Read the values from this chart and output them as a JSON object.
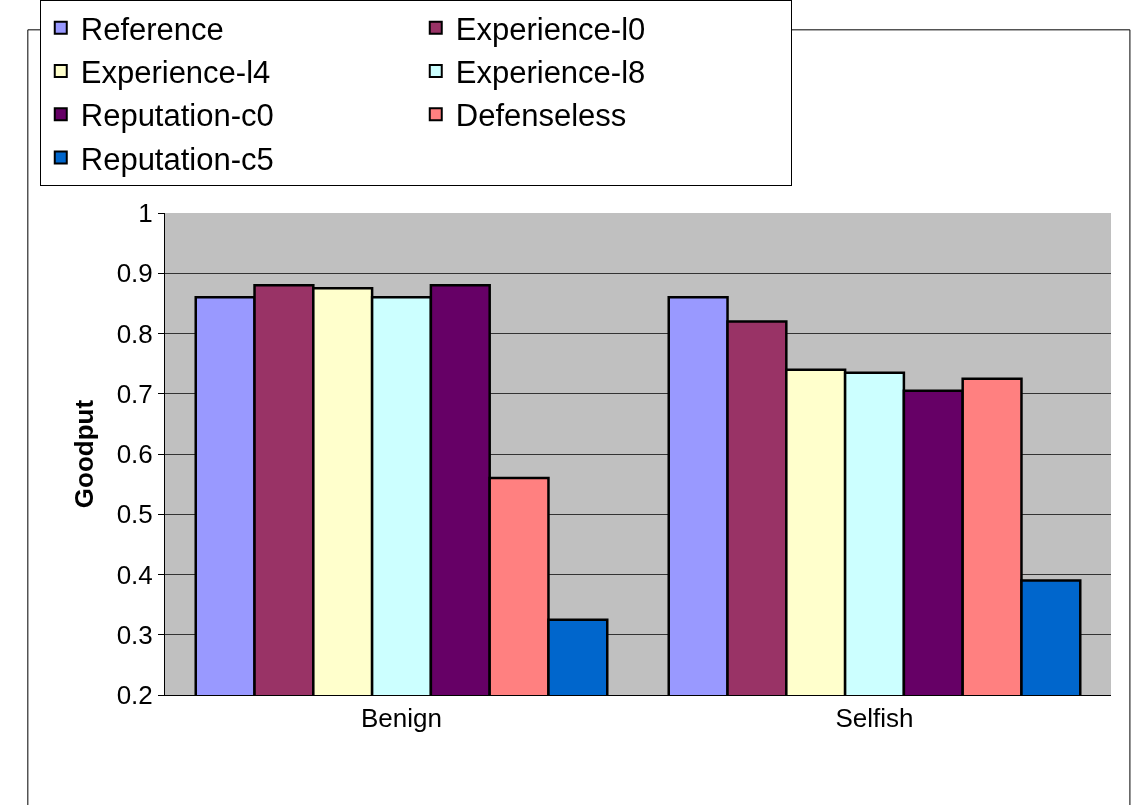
{
  "chart_data": {
    "type": "bar",
    "ylabel": "Goodput",
    "categories": [
      "Benign",
      "Selfish"
    ],
    "series": [
      {
        "name": "Reference",
        "color": "#9999ff",
        "values": [
          0.86,
          0.86
        ]
      },
      {
        "name": "Experience-l0",
        "color": "#993366",
        "values": [
          0.88,
          0.82
        ]
      },
      {
        "name": "Experience-l4",
        "color": "#ffffcc",
        "values": [
          0.875,
          0.74
        ]
      },
      {
        "name": "Experience-l8",
        "color": "#ccffff",
        "values": [
          0.86,
          0.735
        ]
      },
      {
        "name": "Reputation-c0",
        "color": "#660066",
        "values": [
          0.88,
          0.705
        ]
      },
      {
        "name": "Defenseless",
        "color": "#ff8080",
        "values": [
          0.56,
          0.725
        ]
      },
      {
        "name": "Reputation-c5",
        "color": "#0066cc",
        "values": [
          0.325,
          0.39
        ]
      }
    ],
    "ylim": [
      0.2,
      1
    ],
    "yticks": [
      0.2,
      0.3,
      0.4,
      0.5,
      0.6,
      0.7,
      0.8,
      0.9,
      1
    ],
    "grid": "y",
    "legend": "top"
  }
}
